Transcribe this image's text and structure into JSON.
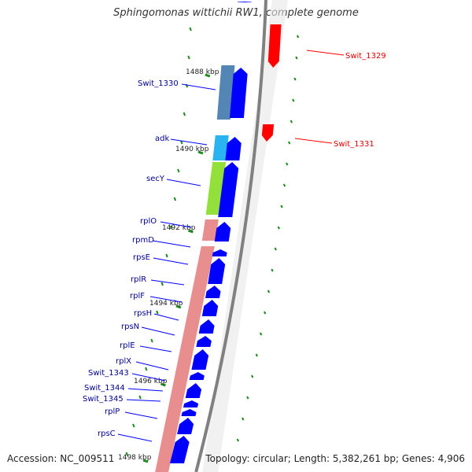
{
  "title": "Sphingomonas wittichii RW1, complete genome",
  "accession_text": "Accession: NC_009511",
  "topology_text": "Topology: circular; Length: 5,382,261 bp; Genes: 4,906",
  "colors": {
    "forward_gene": "#0000ff",
    "reverse_gene": "#ff0000",
    "label_forward": "#00008b",
    "label_reverse": "#dd0000",
    "tick": "#1a8a1a",
    "backbone": "#808080",
    "operon_red": "#e57a7a",
    "operon_steel": "#4a7fb0",
    "operon_cyan": "#1eb0f0",
    "operon_green": "#8cde2e"
  },
  "scale_labels": [
    "1488 kbp",
    "1490 kbp",
    "1492 kbp",
    "1494 kbp",
    "1496 kbp",
    "1498 kbp"
  ],
  "reverse_labels": [
    "Swit_1329",
    "Swit_1331"
  ],
  "forward_labels": [
    "Swit_1330",
    "adk",
    "secY",
    "rplO",
    "rpmD",
    "rpsE",
    "rplR",
    "rplF",
    "rpsH",
    "rpsN",
    "rplE",
    "rplX",
    "Swit_1343",
    "Swit_1344",
    "Swit_1345",
    "rplP",
    "rpsC"
  ]
}
